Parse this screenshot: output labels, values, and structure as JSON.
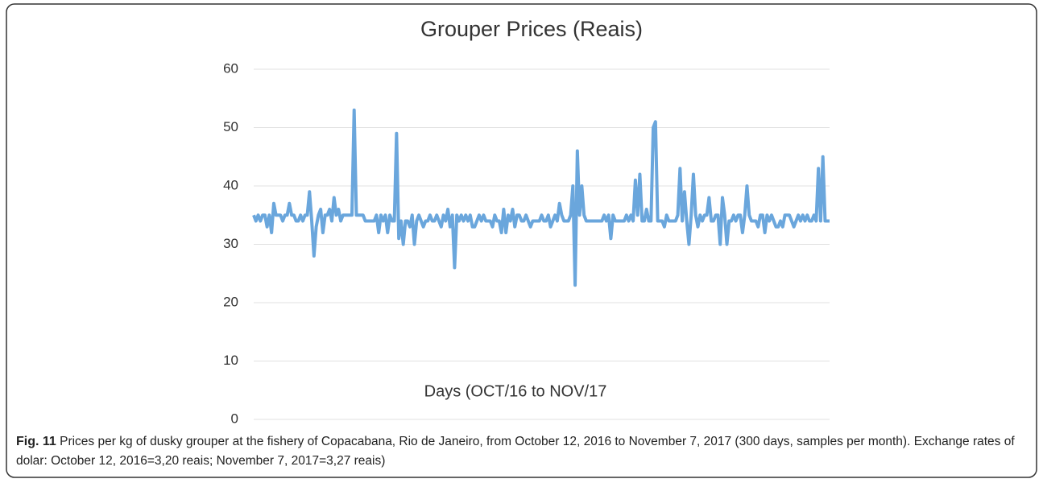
{
  "chart_data": {
    "type": "line",
    "title": "Grouper Prices  (Reais)",
    "x_label": "Days (OCT/16 to NOV/17",
    "color": "#6aa6dc",
    "values": [
      35,
      34,
      35,
      34,
      35,
      35,
      33,
      35,
      32,
      37,
      35,
      35,
      35,
      34,
      35,
      35,
      37,
      35,
      35,
      34,
      34,
      35,
      34,
      35,
      35,
      39,
      34,
      28,
      33,
      35,
      36,
      32,
      35,
      35,
      36,
      34,
      38,
      35,
      36,
      34,
      35,
      35,
      35,
      35,
      35,
      53,
      35,
      35,
      35,
      35,
      34,
      34,
      34,
      34,
      34,
      35,
      32,
      35,
      34,
      35,
      32,
      35,
      34,
      34,
      49,
      31,
      34,
      30,
      34,
      34,
      33,
      35,
      30,
      34,
      35,
      34,
      33,
      34,
      34,
      35,
      34,
      34,
      35,
      34,
      33,
      35,
      34,
      36,
      33,
      35,
      26,
      35,
      34,
      35,
      34,
      35,
      34,
      35,
      33,
      33,
      34,
      35,
      34,
      35,
      34,
      34,
      34,
      33,
      35,
      34,
      34,
      32,
      36,
      32,
      35,
      34,
      36,
      33,
      35,
      35,
      34,
      34,
      35,
      34,
      33,
      34,
      34,
      34,
      34,
      35,
      34,
      34,
      35,
      33,
      34,
      35,
      34,
      37,
      35,
      34,
      34,
      34,
      35,
      40,
      23,
      46,
      35,
      40,
      35,
      34,
      34,
      34,
      34,
      34,
      34,
      34,
      34,
      35,
      34,
      35,
      31,
      35,
      34,
      34,
      34,
      34,
      34,
      35,
      34,
      35,
      34,
      41,
      35,
      42,
      34,
      34,
      36,
      34,
      34,
      50,
      51,
      34,
      34,
      34,
      33,
      35,
      34,
      34,
      34,
      34,
      35,
      43,
      34,
      39,
      34,
      30,
      35,
      42,
      35,
      33,
      35,
      34,
      35,
      35,
      38,
      34,
      34,
      35,
      35,
      30,
      38,
      35,
      30,
      34,
      34,
      35,
      34,
      35,
      35,
      32,
      35,
      40,
      35,
      34,
      34,
      34,
      33,
      35,
      35,
      32,
      35,
      34,
      35,
      34,
      33,
      33,
      34,
      33,
      35,
      35,
      35,
      34,
      33,
      34,
      35,
      34,
      35,
      34,
      35,
      34,
      34,
      35,
      34,
      43,
      34,
      45,
      34,
      34,
      34
    ],
    "ylim": [
      0,
      60
    ],
    "yticks": [
      0,
      10,
      20,
      30,
      40,
      50,
      60
    ],
    "grid": true
  },
  "caption_label": "Fig. 11",
  "caption": "Prices per kg of dusky grouper at the fishery of Copacabana, Rio de Janeiro, from October 12, 2016 to November 7, 2017 (300 days, samples per month). Exchange rates of dolar: October 12, 2016=3,20 reais; November 7, 2017=3,27 reais)"
}
